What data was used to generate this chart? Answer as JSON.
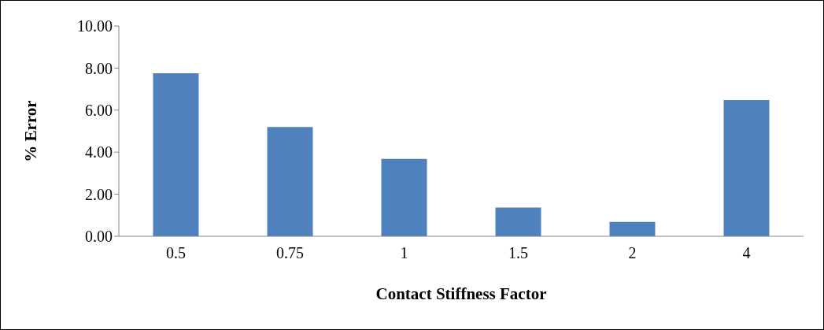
{
  "chart_data": {
    "type": "bar",
    "xlabel": "Contact Stiffness Factor",
    "ylabel": "% Error",
    "categories": [
      "0.5",
      "0.75",
      "1",
      "1.5",
      "2",
      "4"
    ],
    "values": [
      7.75,
      5.2,
      3.68,
      1.37,
      0.68,
      6.48
    ],
    "color": "#4f81bd",
    "ylim": [
      0,
      10
    ],
    "yticks": [
      {
        "value": 0,
        "label": "0.00"
      },
      {
        "value": 2,
        "label": "2.00"
      },
      {
        "value": 4,
        "label": "4.00"
      },
      {
        "value": 6,
        "label": "6.00"
      },
      {
        "value": 8,
        "label": "8.00"
      },
      {
        "value": 10,
        "label": "10.00"
      }
    ],
    "grid": false
  }
}
